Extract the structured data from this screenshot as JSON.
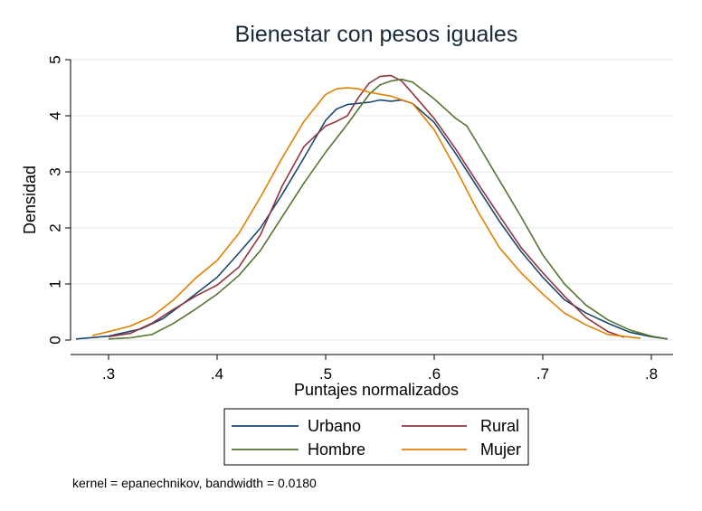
{
  "chart_data": {
    "type": "line",
    "title": "Bienestar con pesos iguales",
    "xlabel": "Puntajes normalizados",
    "ylabel": "Densidad",
    "xlim": [
      0.265,
      0.82
    ],
    "ylim": [
      0,
      5
    ],
    "xticks": [
      0.3,
      0.4,
      0.5,
      0.6,
      0.7,
      0.8
    ],
    "xtick_labels": [
      ".3",
      ".4",
      ".5",
      ".6",
      ".7",
      ".8"
    ],
    "yticks": [
      0,
      1,
      2,
      3,
      4,
      5
    ],
    "ytick_labels": [
      "0",
      "1",
      "2",
      "3",
      "4",
      "5"
    ],
    "grid": "horizontal",
    "legend_position": "bottom",
    "note": "kernel = epanechnikov, bandwidth = 0.0180",
    "series": [
      {
        "name": "Urbano",
        "color": "#1a476f",
        "x": [
          0.27,
          0.3,
          0.33,
          0.35,
          0.37,
          0.4,
          0.42,
          0.44,
          0.46,
          0.48,
          0.5,
          0.51,
          0.52,
          0.54,
          0.55,
          0.56,
          0.57,
          0.58,
          0.6,
          0.62,
          0.64,
          0.66,
          0.68,
          0.7,
          0.72,
          0.74,
          0.76,
          0.78,
          0.8,
          0.815
        ],
        "y": [
          0.02,
          0.07,
          0.2,
          0.38,
          0.67,
          1.12,
          1.55,
          2.0,
          2.6,
          3.25,
          3.92,
          4.12,
          4.2,
          4.24,
          4.28,
          4.26,
          4.28,
          4.22,
          3.88,
          3.32,
          2.72,
          2.12,
          1.58,
          1.12,
          0.72,
          0.48,
          0.3,
          0.14,
          0.06,
          0.02
        ]
      },
      {
        "name": "Rural",
        "color": "#90353b",
        "x": [
          0.3,
          0.32,
          0.34,
          0.36,
          0.38,
          0.4,
          0.42,
          0.44,
          0.46,
          0.48,
          0.5,
          0.51,
          0.52,
          0.53,
          0.54,
          0.55,
          0.56,
          0.57,
          0.58,
          0.6,
          0.62,
          0.64,
          0.66,
          0.68,
          0.7,
          0.72,
          0.74,
          0.76,
          0.775
        ],
        "y": [
          0.06,
          0.12,
          0.3,
          0.55,
          0.78,
          0.98,
          1.3,
          1.88,
          2.75,
          3.45,
          3.82,
          3.9,
          4.0,
          4.32,
          4.58,
          4.7,
          4.72,
          4.62,
          4.4,
          3.95,
          3.4,
          2.8,
          2.22,
          1.65,
          1.2,
          0.78,
          0.4,
          0.15,
          0.05
        ]
      },
      {
        "name": "Hombre",
        "color": "#55752f",
        "x": [
          0.3,
          0.32,
          0.34,
          0.36,
          0.38,
          0.4,
          0.42,
          0.44,
          0.46,
          0.48,
          0.5,
          0.52,
          0.54,
          0.55,
          0.56,
          0.57,
          0.58,
          0.6,
          0.62,
          0.63,
          0.64,
          0.66,
          0.68,
          0.7,
          0.72,
          0.74,
          0.76,
          0.78,
          0.8,
          0.815
        ],
        "y": [
          0.02,
          0.04,
          0.1,
          0.3,
          0.55,
          0.82,
          1.15,
          1.6,
          2.2,
          2.8,
          3.35,
          3.85,
          4.38,
          4.55,
          4.62,
          4.65,
          4.6,
          4.3,
          3.95,
          3.82,
          3.5,
          2.85,
          2.2,
          1.52,
          1.0,
          0.62,
          0.36,
          0.18,
          0.07,
          0.02
        ]
      },
      {
        "name": "Mujer",
        "color": "#e37e00",
        "x": [
          0.285,
          0.3,
          0.32,
          0.34,
          0.36,
          0.38,
          0.4,
          0.42,
          0.44,
          0.46,
          0.48,
          0.5,
          0.51,
          0.52,
          0.53,
          0.54,
          0.56,
          0.58,
          0.6,
          0.62,
          0.64,
          0.66,
          0.68,
          0.7,
          0.72,
          0.74,
          0.76,
          0.79
        ],
        "y": [
          0.08,
          0.15,
          0.25,
          0.42,
          0.72,
          1.1,
          1.42,
          1.9,
          2.55,
          3.25,
          3.9,
          4.38,
          4.48,
          4.5,
          4.48,
          4.42,
          4.35,
          4.22,
          3.75,
          3.05,
          2.3,
          1.65,
          1.2,
          0.82,
          0.48,
          0.27,
          0.1,
          0.03
        ]
      }
    ]
  }
}
